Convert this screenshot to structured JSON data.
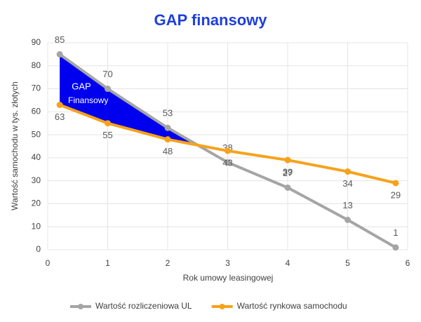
{
  "chart_data": {
    "type": "line",
    "title": "GAP finansowy",
    "x_label": "Rok umowy leasingowej",
    "y_label": "Wartość samochodu w tys. złotych",
    "x": [
      0.2,
      1,
      2,
      3,
      4,
      5,
      5.8
    ],
    "series": [
      {
        "name": "Wartość rozliczeniowa UL",
        "color": "#a5a5a5",
        "values": [
          85,
          70,
          53,
          38,
          27,
          13,
          1
        ]
      },
      {
        "name": "Wartość rynkowa samochodu",
        "color": "#f7a21b",
        "values": [
          63,
          55,
          48,
          43,
          39,
          34,
          29
        ]
      }
    ],
    "annotations": [
      "GAP",
      "Finansowy"
    ],
    "fill_color": "#0000ee",
    "xlim": [
      0,
      6
    ],
    "xticks": [
      0,
      1,
      2,
      3,
      4,
      5,
      6
    ],
    "ylim": [
      0,
      90
    ],
    "yticks": [
      0,
      10,
      20,
      30,
      40,
      50,
      60,
      70,
      80,
      90
    ],
    "grid": true,
    "legend": "bottom"
  }
}
